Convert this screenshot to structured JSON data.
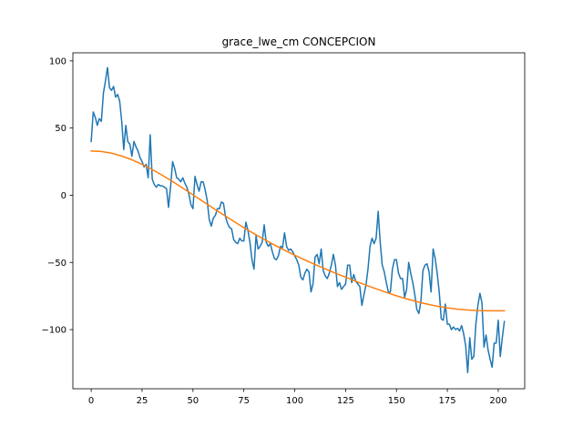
{
  "chart_data": {
    "type": "line",
    "title": "grace_lwe_cm CONCEPCION",
    "xlabel": "",
    "ylabel": "",
    "xlim": [
      -9,
      213
    ],
    "ylim": [
      -144,
      106
    ],
    "x_ticks": [
      0,
      25,
      50,
      75,
      100,
      125,
      150,
      175,
      200
    ],
    "y_ticks": [
      -100,
      -50,
      0,
      50,
      100
    ],
    "x_tick_labels": [
      "0",
      "25",
      "50",
      "75",
      "100",
      "125",
      "150",
      "175",
      "200"
    ],
    "y_tick_labels": [
      "−100",
      "−50",
      "0",
      "50",
      "100"
    ],
    "grid": false,
    "legend": "none",
    "series": [
      {
        "color": "#1f77b4",
        "points": [
          [
            0,
            40
          ],
          [
            1,
            62
          ],
          [
            2,
            58
          ],
          [
            3,
            52
          ],
          [
            4,
            57
          ],
          [
            5,
            55
          ],
          [
            6,
            76
          ],
          [
            7,
            85
          ],
          [
            8,
            95
          ],
          [
            9,
            80
          ],
          [
            10,
            78
          ],
          [
            11,
            81
          ],
          [
            12,
            73
          ],
          [
            13,
            75
          ],
          [
            14,
            70
          ],
          [
            15,
            55
          ],
          [
            16,
            34
          ],
          [
            17,
            52
          ],
          [
            18,
            40
          ],
          [
            19,
            38
          ],
          [
            20,
            29
          ],
          [
            21,
            40
          ],
          [
            22,
            36
          ],
          [
            23,
            33
          ],
          [
            24,
            28
          ],
          [
            25,
            25
          ],
          [
            26,
            21
          ],
          [
            27,
            23
          ],
          [
            28,
            13
          ],
          [
            29,
            45
          ],
          [
            30,
            12
          ],
          [
            31,
            8
          ],
          [
            32,
            6
          ],
          [
            33,
            8
          ],
          [
            34,
            7
          ],
          [
            35,
            7
          ],
          [
            36,
            6
          ],
          [
            37,
            5
          ],
          [
            38,
            -9
          ],
          [
            39,
            6
          ],
          [
            40,
            25
          ],
          [
            41,
            20
          ],
          [
            42,
            13
          ],
          [
            43,
            12
          ],
          [
            44,
            10
          ],
          [
            45,
            13
          ],
          [
            46,
            9
          ],
          [
            47,
            6
          ],
          [
            48,
            1
          ],
          [
            49,
            -7
          ],
          [
            50,
            -10
          ],
          [
            51,
            14
          ],
          [
            52,
            8
          ],
          [
            53,
            3
          ],
          [
            54,
            10
          ],
          [
            55,
            10
          ],
          [
            56,
            4
          ],
          [
            57,
            -4
          ],
          [
            58,
            -18
          ],
          [
            59,
            -23
          ],
          [
            60,
            -17
          ],
          [
            61,
            -15
          ],
          [
            62,
            -10
          ],
          [
            63,
            -10
          ],
          [
            64,
            -5
          ],
          [
            65,
            -6
          ],
          [
            66,
            -16
          ],
          [
            67,
            -21
          ],
          [
            68,
            -24
          ],
          [
            69,
            -25
          ],
          [
            70,
            -33
          ],
          [
            71,
            -35
          ],
          [
            72,
            -36
          ],
          [
            73,
            -32
          ],
          [
            74,
            -34
          ],
          [
            75,
            -34
          ],
          [
            76,
            -20
          ],
          [
            77,
            -26
          ],
          [
            78,
            -35
          ],
          [
            79,
            -48
          ],
          [
            80,
            -55
          ],
          [
            81,
            -30
          ],
          [
            82,
            -40
          ],
          [
            83,
            -38
          ],
          [
            84,
            -35
          ],
          [
            85,
            -22
          ],
          [
            86,
            -35
          ],
          [
            87,
            -38
          ],
          [
            88,
            -36
          ],
          [
            89,
            -42
          ],
          [
            90,
            -47
          ],
          [
            91,
            -48
          ],
          [
            92,
            -45
          ],
          [
            93,
            -38
          ],
          [
            94,
            -39
          ],
          [
            95,
            -28
          ],
          [
            96,
            -38
          ],
          [
            97,
            -41
          ],
          [
            98,
            -40
          ],
          [
            99,
            -42
          ],
          [
            100,
            -45
          ],
          [
            101,
            -48
          ],
          [
            102,
            -52
          ],
          [
            103,
            -61
          ],
          [
            104,
            -63
          ],
          [
            105,
            -58
          ],
          [
            106,
            -55
          ],
          [
            107,
            -57
          ],
          [
            108,
            -72
          ],
          [
            109,
            -66
          ],
          [
            110,
            -46
          ],
          [
            111,
            -44
          ],
          [
            112,
            -51
          ],
          [
            113,
            -40
          ],
          [
            114,
            -56
          ],
          [
            115,
            -60
          ],
          [
            116,
            -62
          ],
          [
            117,
            -58
          ],
          [
            118,
            -52
          ],
          [
            119,
            -44
          ],
          [
            120,
            -52
          ],
          [
            121,
            -68
          ],
          [
            122,
            -65
          ],
          [
            123,
            -70
          ],
          [
            124,
            -68
          ],
          [
            125,
            -66
          ],
          [
            126,
            -52
          ],
          [
            127,
            -52
          ],
          [
            128,
            -65
          ],
          [
            129,
            -59
          ],
          [
            130,
            -64
          ],
          [
            131,
            -66
          ],
          [
            132,
            -68
          ],
          [
            133,
            -82
          ],
          [
            134,
            -74
          ],
          [
            135,
            -67
          ],
          [
            136,
            -55
          ],
          [
            137,
            -38
          ],
          [
            138,
            -32
          ],
          [
            139,
            -36
          ],
          [
            140,
            -32
          ],
          [
            141,
            -12
          ],
          [
            142,
            -35
          ],
          [
            143,
            -52
          ],
          [
            144,
            -57
          ],
          [
            145,
            -65
          ],
          [
            146,
            -72
          ],
          [
            147,
            -72
          ],
          [
            148,
            -55
          ],
          [
            149,
            -48
          ],
          [
            150,
            -48
          ],
          [
            151,
            -58
          ],
          [
            152,
            -62
          ],
          [
            153,
            -62
          ],
          [
            154,
            -76
          ],
          [
            155,
            -70
          ],
          [
            156,
            -50
          ],
          [
            157,
            -58
          ],
          [
            158,
            -65
          ],
          [
            159,
            -74
          ],
          [
            160,
            -85
          ],
          [
            161,
            -88
          ],
          [
            162,
            -79
          ],
          [
            163,
            -56
          ],
          [
            164,
            -52
          ],
          [
            165,
            -51
          ],
          [
            166,
            -57
          ],
          [
            167,
            -72
          ],
          [
            168,
            -40
          ],
          [
            169,
            -47
          ],
          [
            170,
            -58
          ],
          [
            171,
            -72
          ],
          [
            172,
            -92
          ],
          [
            173,
            -93
          ],
          [
            174,
            -81
          ],
          [
            175,
            -96
          ],
          [
            176,
            -96
          ],
          [
            177,
            -100
          ],
          [
            178,
            -98
          ],
          [
            179,
            -100
          ],
          [
            180,
            -99
          ],
          [
            181,
            -101
          ],
          [
            182,
            -97
          ],
          [
            183,
            -103
          ],
          [
            184,
            -112
          ],
          [
            185,
            -132
          ],
          [
            186,
            -106
          ],
          [
            187,
            -122
          ],
          [
            188,
            -120
          ],
          [
            189,
            -96
          ],
          [
            190,
            -82
          ],
          [
            191,
            -73
          ],
          [
            192,
            -80
          ],
          [
            193,
            -113
          ],
          [
            194,
            -104
          ],
          [
            195,
            -115
          ],
          [
            196,
            -122
          ],
          [
            197,
            -128
          ],
          [
            198,
            -110
          ],
          [
            199,
            -110
          ],
          [
            200,
            -93
          ],
          [
            201,
            -120
          ],
          [
            202,
            -106
          ],
          [
            203,
            -94
          ]
        ]
      },
      {
        "color": "#ff7f0e",
        "points": [
          [
            0,
            33.0
          ],
          [
            5,
            32.6
          ],
          [
            10,
            31.3
          ],
          [
            15,
            29.2
          ],
          [
            20,
            26.4
          ],
          [
            25,
            23.0
          ],
          [
            30,
            19.1
          ],
          [
            35,
            14.8
          ],
          [
            40,
            10.2
          ],
          [
            45,
            5.3
          ],
          [
            50,
            0.3
          ],
          [
            55,
            -4.7
          ],
          [
            60,
            -9.7
          ],
          [
            65,
            -14.6
          ],
          [
            70,
            -19.4
          ],
          [
            75,
            -24.1
          ],
          [
            80,
            -28.6
          ],
          [
            85,
            -32.9
          ],
          [
            90,
            -37.0
          ],
          [
            95,
            -40.9
          ],
          [
            100,
            -44.6
          ],
          [
            105,
            -48.2
          ],
          [
            110,
            -51.6
          ],
          [
            115,
            -54.8
          ],
          [
            120,
            -58.0
          ],
          [
            125,
            -61.0
          ],
          [
            130,
            -64.0
          ],
          [
            135,
            -66.9
          ],
          [
            140,
            -69.6
          ],
          [
            145,
            -72.3
          ],
          [
            150,
            -74.8
          ],
          [
            155,
            -77.1
          ],
          [
            160,
            -79.2
          ],
          [
            165,
            -81.0
          ],
          [
            170,
            -82.6
          ],
          [
            175,
            -83.8
          ],
          [
            180,
            -84.8
          ],
          [
            185,
            -85.4
          ],
          [
            190,
            -85.8
          ],
          [
            195,
            -86.0
          ],
          [
            200,
            -86.0
          ],
          [
            203,
            -86.0
          ]
        ]
      }
    ]
  }
}
